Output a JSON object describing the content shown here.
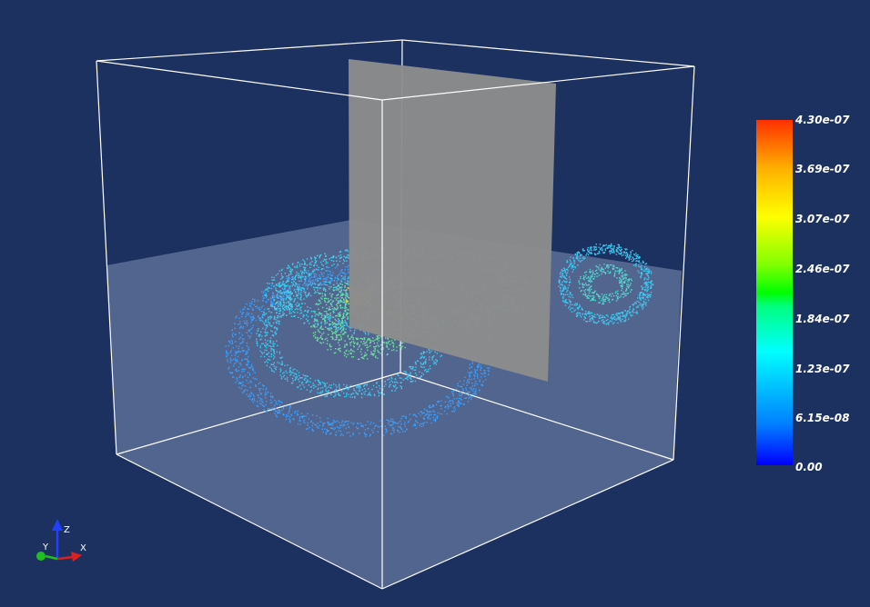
{
  "colorbar": {
    "ticks": [
      "4.30e-07",
      "3.69e-07",
      "3.07e-07",
      "2.46e-07",
      "1.84e-07",
      "1.23e-07",
      "6.15e-08",
      "0.00"
    ]
  },
  "axes": {
    "x_label": "X",
    "y_label": "Y",
    "z_label": "Z",
    "x_color": "#e02020",
    "y_color": "#20c020",
    "z_color": "#2040ff"
  },
  "colors": {
    "background": "#1c3160",
    "outline": "#ffffff",
    "slice_plane": "#8c8c8c"
  }
}
